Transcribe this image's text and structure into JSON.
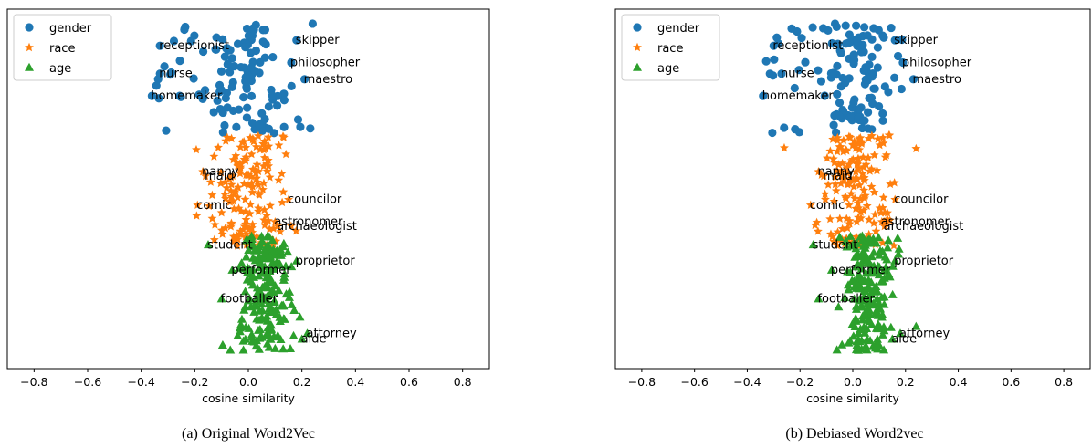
{
  "chart_data": [
    {
      "type": "scatter",
      "caption": "(a) Original Word2Vec",
      "xlabel": "cosine similarity",
      "xlim": [
        -0.9,
        0.9
      ],
      "xticks": [
        "−0.8",
        "−0.6",
        "−0.4",
        "−0.2",
        "0.0",
        "0.2",
        "0.4",
        "0.6",
        "0.8"
      ],
      "xtick_values": [
        -0.8,
        -0.6,
        -0.4,
        -0.2,
        0.0,
        0.2,
        0.4,
        0.6,
        0.8
      ],
      "yticks_shown": false,
      "legend_position": "upper-left",
      "series": [
        {
          "name": "gender",
          "marker": "circle",
          "color": "#1f77b4",
          "center": 0.0,
          "spread": 0.08,
          "count": 120,
          "band": "top"
        },
        {
          "name": "race",
          "marker": "star",
          "color": "#ff7f0e",
          "center": 0.0,
          "spread": 0.07,
          "count": 160,
          "band": "middle"
        },
        {
          "name": "age",
          "marker": "triangle",
          "color": "#2ca02c",
          "center": 0.06,
          "spread": 0.05,
          "count": 200,
          "band": "bottom"
        }
      ],
      "annotations": [
        {
          "text": "receptionist",
          "x": -0.33,
          "series": "gender",
          "row": 0.2
        },
        {
          "text": "nurse",
          "x": -0.33,
          "series": "gender",
          "row": 0.45
        },
        {
          "text": "homemaker",
          "x": -0.36,
          "series": "gender",
          "row": 0.65
        },
        {
          "text": "skipper",
          "x": 0.18,
          "series": "gender",
          "row": 0.15
        },
        {
          "text": "philosopher",
          "x": 0.16,
          "series": "gender",
          "row": 0.35
        },
        {
          "text": "maestro",
          "x": 0.21,
          "series": "gender",
          "row": 0.5
        },
        {
          "text": "nanny",
          "x": -0.17,
          "series": "race",
          "row": 0.33
        },
        {
          "text": "maid",
          "x": -0.16,
          "series": "race",
          "row": 0.37
        },
        {
          "text": "comic",
          "x": -0.19,
          "series": "race",
          "row": 0.63
        },
        {
          "text": "councilor",
          "x": 0.15,
          "series": "race",
          "row": 0.58
        },
        {
          "text": "astronomer",
          "x": 0.1,
          "series": "race",
          "row": 0.78
        },
        {
          "text": "archaeologist",
          "x": 0.11,
          "series": "race",
          "row": 0.82
        },
        {
          "text": "student",
          "x": -0.15,
          "series": "age",
          "row": 0.08
        },
        {
          "text": "proprietor",
          "x": 0.18,
          "series": "age",
          "row": 0.22
        },
        {
          "text": "performer",
          "x": -0.06,
          "series": "age",
          "row": 0.3
        },
        {
          "text": "footballer",
          "x": -0.1,
          "series": "age",
          "row": 0.55
        },
        {
          "text": "attorney",
          "x": 0.22,
          "series": "age",
          "row": 0.85
        },
        {
          "text": "aide",
          "x": 0.2,
          "series": "age",
          "row": 0.9
        }
      ]
    },
    {
      "type": "scatter",
      "caption": "(b) Debiased Word2vec",
      "xlabel": "cosine similarity",
      "xlim": [
        -0.9,
        0.9
      ],
      "xticks": [
        "−0.8",
        "−0.6",
        "−0.4",
        "−0.2",
        "0.0",
        "0.2",
        "0.4",
        "0.6",
        "0.8"
      ],
      "xtick_values": [
        -0.8,
        -0.6,
        -0.4,
        -0.2,
        0.0,
        0.2,
        0.4,
        0.6,
        0.8
      ],
      "yticks_shown": false,
      "legend_position": "upper-left",
      "series": [
        {
          "name": "gender",
          "marker": "circle",
          "color": "#1f77b4",
          "center": 0.02,
          "spread": 0.08,
          "count": 120,
          "band": "top"
        },
        {
          "name": "race",
          "marker": "star",
          "color": "#ff7f0e",
          "center": 0.02,
          "spread": 0.07,
          "count": 160,
          "band": "middle"
        },
        {
          "name": "age",
          "marker": "triangle",
          "color": "#2ca02c",
          "center": 0.06,
          "spread": 0.05,
          "count": 200,
          "band": "bottom"
        }
      ],
      "annotations": [
        {
          "text": "receptionist",
          "x": -0.3,
          "series": "gender",
          "row": 0.2
        },
        {
          "text": "nurse",
          "x": -0.27,
          "series": "gender",
          "row": 0.45
        },
        {
          "text": "homemaker",
          "x": -0.34,
          "series": "gender",
          "row": 0.65
        },
        {
          "text": "skipper",
          "x": 0.16,
          "series": "gender",
          "row": 0.15
        },
        {
          "text": "philosopher",
          "x": 0.19,
          "series": "gender",
          "row": 0.35
        },
        {
          "text": "maestro",
          "x": 0.23,
          "series": "gender",
          "row": 0.5
        },
        {
          "text": "nanny",
          "x": -0.13,
          "series": "race",
          "row": 0.33
        },
        {
          "text": "maid",
          "x": -0.11,
          "series": "race",
          "row": 0.37
        },
        {
          "text": "comic",
          "x": -0.16,
          "series": "race",
          "row": 0.63
        },
        {
          "text": "councilor",
          "x": 0.16,
          "series": "race",
          "row": 0.58
        },
        {
          "text": "astronomer",
          "x": 0.11,
          "series": "race",
          "row": 0.78
        },
        {
          "text": "archaeologist",
          "x": 0.12,
          "series": "race",
          "row": 0.82
        },
        {
          "text": "student",
          "x": -0.15,
          "series": "age",
          "row": 0.08
        },
        {
          "text": "proprietor",
          "x": 0.16,
          "series": "age",
          "row": 0.22
        },
        {
          "text": "performer",
          "x": -0.08,
          "series": "age",
          "row": 0.3
        },
        {
          "text": "footballer",
          "x": -0.13,
          "series": "age",
          "row": 0.55
        },
        {
          "text": "attorney",
          "x": 0.18,
          "series": "age",
          "row": 0.85
        },
        {
          "text": "aide",
          "x": 0.15,
          "series": "age",
          "row": 0.9
        }
      ]
    }
  ]
}
